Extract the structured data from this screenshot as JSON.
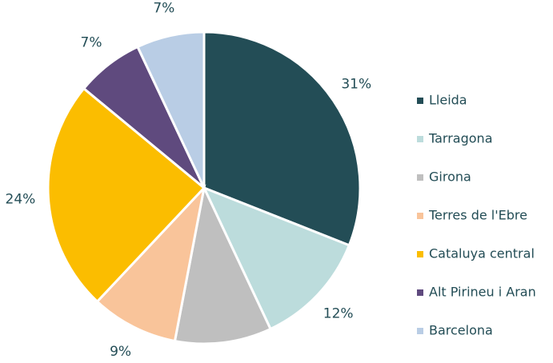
{
  "chart_data": {
    "type": "pie",
    "categories": [
      "Lleida",
      "Tarragona",
      "Girona",
      "Terres de l'Ebre",
      "Cataluya central",
      "Alt Pirineu i Aran",
      "Barcelona"
    ],
    "values": [
      31,
      12,
      10,
      9,
      24,
      7,
      7
    ],
    "value_labels": [
      "31%",
      "12%",
      "10%",
      "9%",
      "24%",
      "7%",
      "7%"
    ],
    "colors": [
      "#234d56",
      "#bcdcdc",
      "#bfbfbf",
      "#f9c49a",
      "#fbbd00",
      "#5f4a7e",
      "#b9cde5"
    ],
    "legend": "right"
  }
}
